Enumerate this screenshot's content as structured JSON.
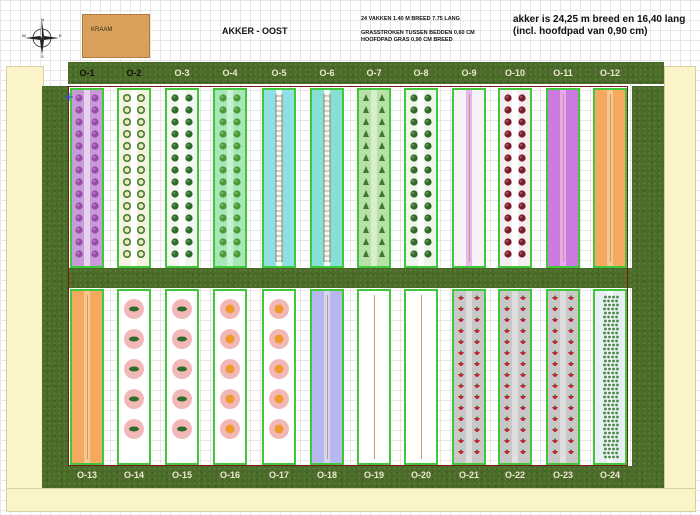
{
  "header": {
    "title": "AKKER - OOST",
    "kraam_label": "KRAAM",
    "info_line1": "24 VAKKEN 1.40 M BREED 7.75 LANG",
    "info_line2": "GRASSTROKEN TUSSEN BEDDEN 0,60 CM",
    "info_line3": "HOOFDPAD GRAS 0,90 CM BREED",
    "info_big": "akker is 24,25 m breed en 16,40 lang (incl. hoofdpad van 0,90 cm)"
  },
  "compass": {
    "n": "N",
    "s": "S",
    "e": "E",
    "w": "W"
  },
  "top_row": [
    {
      "label": "O-1",
      "fill": "#c99ad8",
      "stripe": "#e7d3ee",
      "plant": "cabbage",
      "tag": "flower"
    },
    {
      "label": "O-2",
      "fill": "#f6f2e2",
      "stripe": "#ffffff",
      "plant": "cauliflower",
      "tag": "cauliflower"
    },
    {
      "label": "O-3",
      "fill": "#f4f7f0",
      "stripe": "#ffffff",
      "plant": "greenpepper",
      "tag": "pepper"
    },
    {
      "label": "O-4",
      "fill": "#a8e8b8",
      "stripe": "#c8f2d2",
      "plant": "lettuce",
      "tag": "lettuce"
    },
    {
      "label": "O-5",
      "fill": "#8ee0e4",
      "stripe": "#f4fbfb",
      "plant": "ladder",
      "tag": "beans"
    },
    {
      "label": "O-6",
      "fill": "#86e0d6",
      "stripe": "#f0fbf8",
      "plant": "ladder",
      "tag": "peas"
    },
    {
      "label": "O-7",
      "fill": "#b8e0a8",
      "stripe": "#d6efcd",
      "plant": "carrot",
      "tag": "carrot"
    },
    {
      "label": "O-8",
      "fill": "#eef5ea",
      "stripe": "#ffffff",
      "plant": "broccoli",
      "tag": "broccoli"
    },
    {
      "label": "O-9",
      "fill": "#f6f2f8",
      "stripe": "#e8b6f0",
      "plant": "none",
      "tag": "leek"
    },
    {
      "label": "O-10",
      "fill": "#f6eeee",
      "stripe": "#ffffff",
      "plant": "redcabbage",
      "tag": "redcabbage"
    },
    {
      "label": "O-11",
      "fill": "#cc7ae0",
      "stripe": "#e8a8f2",
      "plant": "none",
      "tag": "onion"
    },
    {
      "label": "O-12",
      "fill": "#f4a860",
      "stripe": "#f8c890",
      "plant": "none",
      "tag": "pumpkin"
    }
  ],
  "bottom_row": [
    {
      "label": "O-13",
      "fill": "#f4a860",
      "stripe": "#f8c890",
      "plant": "none",
      "tag": "carrots"
    },
    {
      "label": "O-14",
      "fill": "#ffffff",
      "stripe": "#ffffff",
      "plant": "zucchini",
      "tag": "zucchini"
    },
    {
      "label": "O-15",
      "fill": "#ffffff",
      "stripe": "#ffffff",
      "plant": "zucchini",
      "tag": "cucumber"
    },
    {
      "label": "O-16",
      "fill": "#ffffff",
      "stripe": "#ffffff",
      "plant": "pumpkin",
      "tag": "pumpkin"
    },
    {
      "label": "O-17",
      "fill": "#ffffff",
      "stripe": "#ffffff",
      "plant": "pumpkin",
      "tag": "squash"
    },
    {
      "label": "O-18",
      "fill": "#b8b8f0",
      "stripe": "#d4d4f6",
      "plant": "none",
      "tag": "beets"
    },
    {
      "label": "O-19",
      "fill": "#ffffff",
      "stripe": "#ffffff",
      "plant": "none",
      "tag": "spinach"
    },
    {
      "label": "O-20",
      "fill": "#ffffff",
      "stripe": "#ffffff",
      "plant": "none",
      "tag": "chard"
    },
    {
      "label": "O-21",
      "fill": "#c8c8c8",
      "stripe": "#dedede",
      "plant": "strawberry",
      "tag": "strawberry"
    },
    {
      "label": "O-22",
      "fill": "#c8c8c8",
      "stripe": "#dedede",
      "plant": "strawberry",
      "tag": "strawberry"
    },
    {
      "label": "O-23",
      "fill": "#c8c8c8",
      "stripe": "#dedede",
      "plant": "strawberry",
      "tag": "strawberry"
    },
    {
      "label": "O-24",
      "fill": "#e8f0f4",
      "stripe": "#f6fafa",
      "plant": "herbs",
      "tag": "herbs"
    }
  ],
  "colors": {
    "grass": "#4b6b2a",
    "border_green": "#3ec83a",
    "fence": "#7a1a1a",
    "kraam": "#d8a25c",
    "cream": "#fbf4c8"
  }
}
